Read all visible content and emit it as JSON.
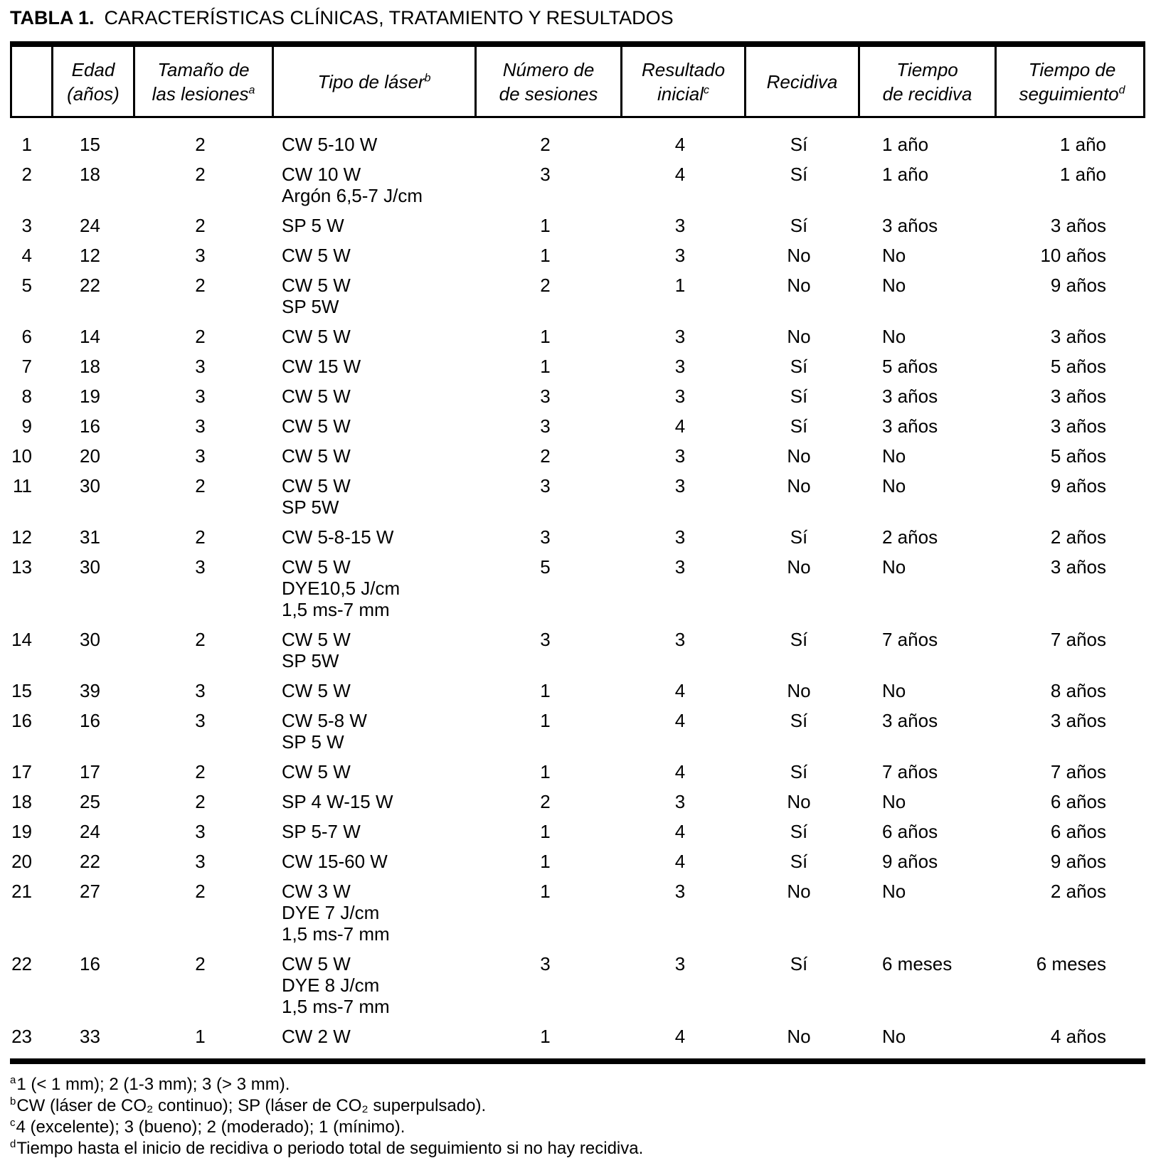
{
  "title": {
    "label": "TABLA 1.",
    "text": "CARACTERÍSTICAS CLÍNICAS, TRATAMIENTO Y RESULTADOS"
  },
  "table": {
    "headers": {
      "num": "",
      "edad": {
        "line1": "Edad",
        "line2": "(años)",
        "sup": ""
      },
      "tamano": {
        "line1": "Tamaño de",
        "line2": "las lesiones",
        "sup": "a"
      },
      "laser": {
        "line1": "Tipo de láser",
        "sup": "b"
      },
      "sesiones": {
        "line1": "Número de",
        "line2": "de sesiones",
        "sup": ""
      },
      "resultado": {
        "line1": "Resultado",
        "line2": "inicial",
        "sup": "c"
      },
      "recidiva": {
        "line1": "Recidiva",
        "sup": ""
      },
      "t_recidiva": {
        "line1": "Tiempo",
        "line2": "de recidiva",
        "sup": ""
      },
      "t_seguimiento": {
        "line1": "Tiempo de",
        "line2": "seguimiento",
        "sup": "d"
      }
    },
    "rows": [
      {
        "n": "1",
        "edad": "15",
        "tamano": "2",
        "laser": [
          "CW 5-10 W"
        ],
        "sesiones": "2",
        "resultado": "4",
        "recidiva": "Sí",
        "t_recidiva": "1 año",
        "t_seguimiento": "1 año"
      },
      {
        "n": "2",
        "edad": "18",
        "tamano": "2",
        "laser": [
          "CW 10 W",
          "Argón 6,5-7 J/cm"
        ],
        "sesiones": "3",
        "resultado": "4",
        "recidiva": "Sí",
        "t_recidiva": "1 año",
        "t_seguimiento": "1 año"
      },
      {
        "n": "3",
        "edad": "24",
        "tamano": "2",
        "laser": [
          "SP 5 W"
        ],
        "sesiones": "1",
        "resultado": "3",
        "recidiva": "Sí",
        "t_recidiva": "3 años",
        "t_seguimiento": "3 años"
      },
      {
        "n": "4",
        "edad": "12",
        "tamano": "3",
        "laser": [
          "CW 5 W"
        ],
        "sesiones": "1",
        "resultado": "3",
        "recidiva": "No",
        "t_recidiva": "No",
        "t_seguimiento": "10 años"
      },
      {
        "n": "5",
        "edad": "22",
        "tamano": "2",
        "laser": [
          "CW 5 W",
          "SP 5W"
        ],
        "sesiones": "2",
        "resultado": "1",
        "recidiva": "No",
        "t_recidiva": "No",
        "t_seguimiento": "9 años"
      },
      {
        "n": "6",
        "edad": "14",
        "tamano": "2",
        "laser": [
          "CW 5 W"
        ],
        "sesiones": "1",
        "resultado": "3",
        "recidiva": "No",
        "t_recidiva": "No",
        "t_seguimiento": "3 años"
      },
      {
        "n": "7",
        "edad": "18",
        "tamano": "3",
        "laser": [
          "CW 15 W"
        ],
        "sesiones": "1",
        "resultado": "3",
        "recidiva": "Sí",
        "t_recidiva": "5 años",
        "t_seguimiento": "5 años"
      },
      {
        "n": "8",
        "edad": "19",
        "tamano": "3",
        "laser": [
          "CW 5 W"
        ],
        "sesiones": "3",
        "resultado": "3",
        "recidiva": "Sí",
        "t_recidiva": "3 años",
        "t_seguimiento": "3 años"
      },
      {
        "n": "9",
        "edad": "16",
        "tamano": "3",
        "laser": [
          "CW 5 W"
        ],
        "sesiones": "3",
        "resultado": "4",
        "recidiva": "Sí",
        "t_recidiva": "3 años",
        "t_seguimiento": "3 años"
      },
      {
        "n": "10",
        "edad": "20",
        "tamano": "3",
        "laser": [
          "CW 5 W"
        ],
        "sesiones": "2",
        "resultado": "3",
        "recidiva": "No",
        "t_recidiva": "No",
        "t_seguimiento": "5 años"
      },
      {
        "n": "11",
        "edad": "30",
        "tamano": "2",
        "laser": [
          "CW 5 W",
          "SP 5W"
        ],
        "sesiones": "3",
        "resultado": "3",
        "recidiva": "No",
        "t_recidiva": "No",
        "t_seguimiento": "9 años"
      },
      {
        "n": "12",
        "edad": "31",
        "tamano": "2",
        "laser": [
          "CW 5-8-15 W"
        ],
        "sesiones": "3",
        "resultado": "3",
        "recidiva": "Sí",
        "t_recidiva": "2 años",
        "t_seguimiento": "2 años"
      },
      {
        "n": "13",
        "edad": "30",
        "tamano": "3",
        "laser": [
          "CW 5 W",
          "DYE10,5 J/cm",
          "1,5 ms-7 mm"
        ],
        "sesiones": "5",
        "resultado": "3",
        "recidiva": "No",
        "t_recidiva": "No",
        "t_seguimiento": "3 años"
      },
      {
        "n": "14",
        "edad": "30",
        "tamano": "2",
        "laser": [
          "CW 5 W",
          "SP 5W"
        ],
        "sesiones": "3",
        "resultado": "3",
        "recidiva": "Sí",
        "t_recidiva": "7 años",
        "t_seguimiento": "7 años"
      },
      {
        "n": "15",
        "edad": "39",
        "tamano": "3",
        "laser": [
          "CW 5 W"
        ],
        "sesiones": "1",
        "resultado": "4",
        "recidiva": "No",
        "t_recidiva": "No",
        "t_seguimiento": "8 años"
      },
      {
        "n": "16",
        "edad": "16",
        "tamano": "3",
        "laser": [
          "CW 5-8 W",
          "SP 5 W"
        ],
        "sesiones": "1",
        "resultado": "4",
        "recidiva": "Sí",
        "t_recidiva": "3 años",
        "t_seguimiento": "3 años"
      },
      {
        "n": "17",
        "edad": "17",
        "tamano": "2",
        "laser": [
          "CW 5 W"
        ],
        "sesiones": "1",
        "resultado": "4",
        "recidiva": "Sí",
        "t_recidiva": "7 años",
        "t_seguimiento": "7 años"
      },
      {
        "n": "18",
        "edad": "25",
        "tamano": "2",
        "laser": [
          "SP 4 W-15 W"
        ],
        "sesiones": "2",
        "resultado": "3",
        "recidiva": "No",
        "t_recidiva": "No",
        "t_seguimiento": "6 años"
      },
      {
        "n": "19",
        "edad": "24",
        "tamano": "3",
        "laser": [
          "SP 5-7 W"
        ],
        "sesiones": "1",
        "resultado": "4",
        "recidiva": "Sí",
        "t_recidiva": "6 años",
        "t_seguimiento": "6 años"
      },
      {
        "n": "20",
        "edad": "22",
        "tamano": "3",
        "laser": [
          "CW 15-60 W"
        ],
        "sesiones": "1",
        "resultado": "4",
        "recidiva": "Sí",
        "t_recidiva": "9 años",
        "t_seguimiento": "9 años"
      },
      {
        "n": "21",
        "edad": "27",
        "tamano": "2",
        "laser": [
          "CW 3 W",
          "DYE 7 J/cm",
          "1,5 ms-7 mm"
        ],
        "sesiones": "1",
        "resultado": "3",
        "recidiva": "No",
        "t_recidiva": "No",
        "t_seguimiento": "2 años"
      },
      {
        "n": "22",
        "edad": "16",
        "tamano": "2",
        "laser": [
          "CW 5 W",
          "DYE 8 J/cm",
          "1,5 ms-7 mm"
        ],
        "sesiones": "3",
        "resultado": "3",
        "recidiva": "Sí",
        "t_recidiva": "6 meses",
        "t_seguimiento": "6 meses"
      },
      {
        "n": "23",
        "edad": "33",
        "tamano": "1",
        "laser": [
          "CW 2 W"
        ],
        "sesiones": "1",
        "resultado": "4",
        "recidiva": "No",
        "t_recidiva": "No",
        "t_seguimiento": "4 años"
      }
    ]
  },
  "footnotes": [
    {
      "sup": "a",
      "text": "1 (< 1 mm); 2 (1-3 mm); 3 (> 3 mm)."
    },
    {
      "sup": "b",
      "text": "CW (láser de CO₂ continuo); SP (láser de CO₂ superpulsado)."
    },
    {
      "sup": "c",
      "text": "4 (excelente); 3 (bueno); 2 (moderado); 1 (mínimo)."
    },
    {
      "sup": "d",
      "text": "Tiempo hasta el inicio de recidiva o periodo total de seguimiento si no hay recidiva."
    }
  ]
}
